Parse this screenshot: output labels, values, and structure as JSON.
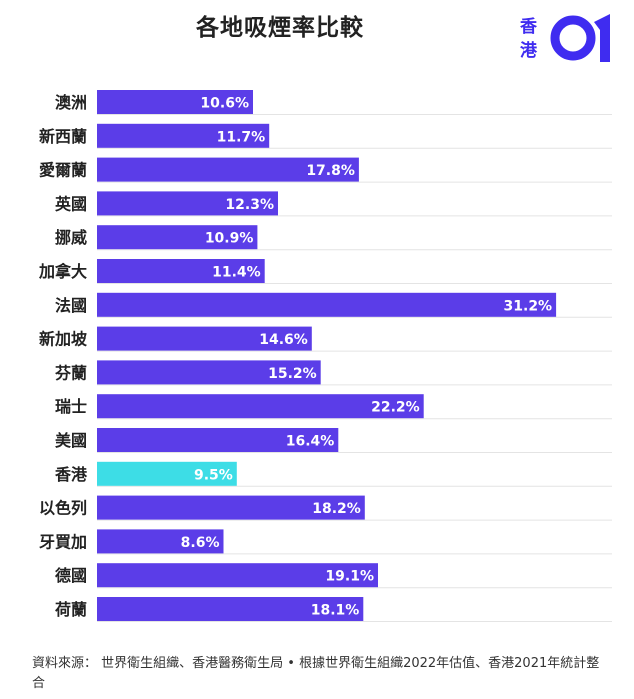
{
  "title": "各地吸煙率比較",
  "logo": {
    "line1": "香",
    "line2": "港",
    "mark": "01"
  },
  "source": "資料來源：  世界衛生組織、香港醫務衛生局 • 根據世界衛生組織2022年估值、香港2021年統計整合",
  "colors": {
    "bar": "#5b3de8",
    "highlight": "#3ddde6",
    "brand": "#3f2cf0",
    "grid": "#e4e4e4"
  },
  "chart_data": {
    "type": "bar",
    "orientation": "horizontal",
    "categories": [
      "澳洲",
      "新西蘭",
      "愛爾蘭",
      "英國",
      "挪威",
      "加拿大",
      "法國",
      "新加坡",
      "芬蘭",
      "瑞士",
      "美國",
      "香港",
      "以色列",
      "牙買加",
      "德國",
      "荷蘭"
    ],
    "values": [
      10.6,
      11.7,
      17.8,
      12.3,
      10.9,
      11.4,
      31.2,
      14.6,
      15.2,
      22.2,
      16.4,
      9.5,
      18.2,
      8.6,
      19.1,
      18.1
    ],
    "value_labels": [
      "10.6%",
      "11.7%",
      "17.8%",
      "12.3%",
      "10.9%",
      "11.4%",
      "31.2%",
      "14.6%",
      "15.2%",
      "22.2%",
      "16.4%",
      "9.5%",
      "18.2%",
      "8.6%",
      "19.1%",
      "18.1%"
    ],
    "highlight_category": "香港",
    "xlim": [
      0,
      35
    ],
    "grid": true
  }
}
